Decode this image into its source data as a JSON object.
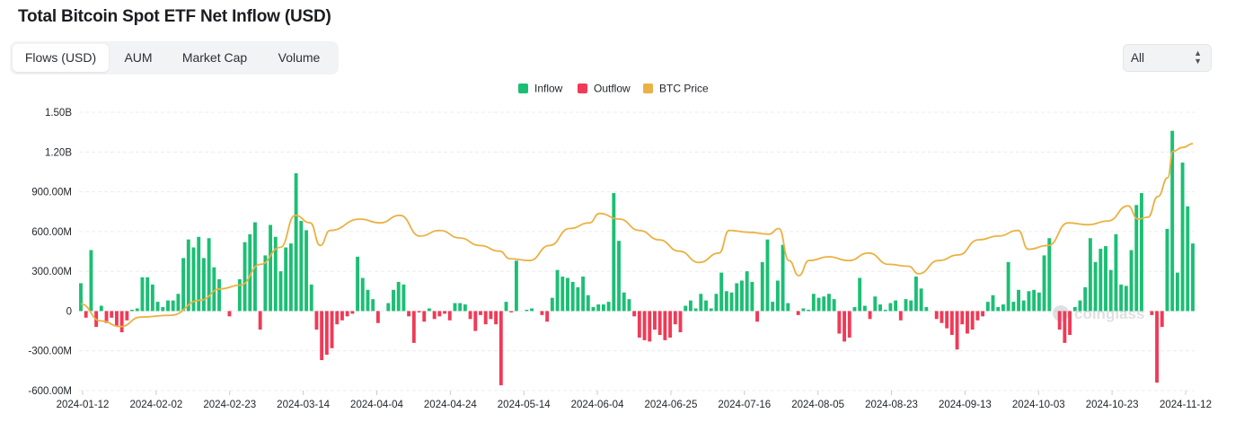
{
  "title": "Total Bitcoin Spot ETF Net Inflow (USD)",
  "tabs": [
    {
      "label": "Flows (USD)",
      "active": true
    },
    {
      "label": "AUM",
      "active": false
    },
    {
      "label": "Market Cap",
      "active": false
    },
    {
      "label": "Volume",
      "active": false
    }
  ],
  "range_select": {
    "value": "All"
  },
  "colors": {
    "inflow": "#1bbf74",
    "outflow": "#f03a57",
    "price": "#eab143",
    "grid": "#ececec",
    "axis_text": "#1f2329"
  },
  "watermark": "coinglass",
  "chart_data": {
    "type": "bar",
    "title": "Total Bitcoin Spot ETF Net Inflow (USD)",
    "legend": [
      "Inflow",
      "Outflow",
      "BTC Price"
    ],
    "legend_position": "top-center",
    "grid": true,
    "y_ticks": [
      "1.50B",
      "1.20B",
      "900.00M",
      "600.00M",
      "300.00M",
      "0",
      "-300.00M",
      "-600.00M"
    ],
    "ylim": [
      -600000000,
      1500000000
    ],
    "x_ticks": [
      "2024-01-12",
      "2024-02-02",
      "2024-02-23",
      "2024-03-14",
      "2024-04-04",
      "2024-04-24",
      "2024-05-14",
      "2024-06-04",
      "2024-06-25",
      "2024-07-16",
      "2024-08-05",
      "2024-08-23",
      "2024-09-13",
      "2024-10-03",
      "2024-10-23",
      "2024-11-12"
    ],
    "net_flow_musd": [
      210,
      -50,
      460,
      -120,
      40,
      -90,
      -50,
      -110,
      -160,
      -70,
      10,
      20,
      255,
      255,
      200,
      70,
      30,
      80,
      80,
      130,
      400,
      540,
      480,
      560,
      400,
      550,
      330,
      240,
      0,
      -40,
      0,
      240,
      520,
      580,
      670,
      -140,
      420,
      650,
      560,
      300,
      480,
      510,
      1040,
      680,
      610,
      200,
      -140,
      -370,
      -330,
      -280,
      -100,
      -70,
      -40,
      -20,
      410,
      250,
      160,
      90,
      -90,
      0,
      60,
      160,
      220,
      200,
      -40,
      -240,
      -10,
      -80,
      20,
      -60,
      -40,
      -20,
      -70,
      60,
      60,
      50,
      -60,
      -150,
      -30,
      -100,
      -60,
      -100,
      -560,
      70,
      -10,
      380,
      0,
      10,
      20,
      0,
      -30,
      -80,
      100,
      310,
      260,
      250,
      220,
      180,
      260,
      120,
      30,
      50,
      50,
      70,
      890,
      530,
      140,
      90,
      -40,
      -200,
      -220,
      -230,
      -140,
      -180,
      -220,
      -200,
      -100,
      -160,
      40,
      80,
      20,
      130,
      80,
      20,
      130,
      290,
      150,
      140,
      210,
      230,
      300,
      220,
      -80,
      370,
      540,
      70,
      230,
      500,
      60,
      0,
      -30,
      20,
      10,
      130,
      100,
      110,
      130,
      90,
      -170,
      -230,
      -200,
      30,
      250,
      40,
      -60,
      110,
      50,
      10,
      60,
      80,
      -70,
      90,
      80,
      260,
      170,
      30,
      0,
      -60,
      -90,
      -130,
      -180,
      -290,
      -100,
      -170,
      -140,
      -70,
      -40,
      70,
      120,
      30,
      50,
      370,
      70,
      160,
      80,
      150,
      160,
      140,
      420,
      550,
      0,
      -140,
      -240,
      -180,
      30,
      80,
      180,
      550,
      370,
      470,
      490,
      310,
      580,
      200,
      190,
      460,
      800,
      890,
      0,
      -30,
      -540,
      -120,
      620,
      1360,
      290,
      1120,
      790,
      510
    ],
    "btc_price_series": {
      "start": "2024-01-11",
      "end": "2024-11-12",
      "min_usd": 39000,
      "max_usd": 89000
    }
  }
}
